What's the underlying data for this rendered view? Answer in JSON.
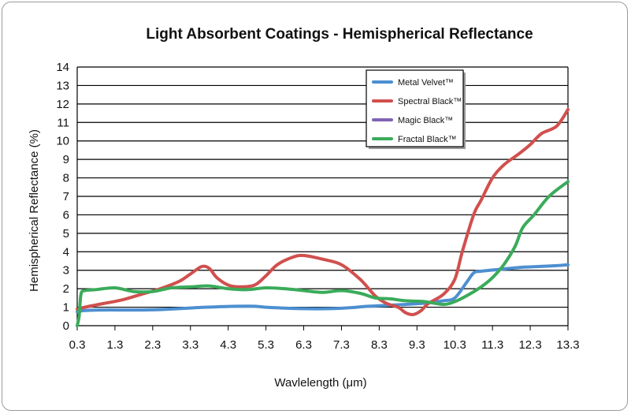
{
  "chart_data": {
    "type": "line",
    "title": "Light Absorbent Coatings - Hemispherical Reflectance",
    "xlabel": "Wavlelength (μm)",
    "ylabel": "Hemispherical Reflectance (%)",
    "xlim": [
      0.3,
      13.3
    ],
    "ylim": [
      0,
      14
    ],
    "xticks": [
      "0.3",
      "1.3",
      "2.3",
      "3.3",
      "4.3",
      "5.3",
      "6.3",
      "7.3",
      "8.3",
      "9.3",
      "10.3",
      "11.3",
      "12.3",
      "13.3"
    ],
    "yticks": [
      "0",
      "1",
      "2",
      "3",
      "4",
      "5",
      "6",
      "7",
      "8",
      "9",
      "10",
      "11",
      "12",
      "13",
      "14"
    ],
    "grid": "horizontal",
    "legend_position": "top-right",
    "series": [
      {
        "name": "Metal Velvet™",
        "color": "#4d8fd1",
        "x": [
          0.3,
          0.5,
          1.0,
          1.5,
          2.0,
          2.5,
          3.0,
          3.5,
          4.0,
          4.5,
          5.0,
          5.3,
          5.8,
          6.3,
          7.0,
          7.5,
          8.0,
          8.5,
          9.0,
          9.5,
          10.0,
          10.3,
          10.6,
          10.8,
          11.0,
          11.5,
          12.0,
          12.5,
          13.0,
          13.3
        ],
        "y": [
          0.75,
          0.82,
          0.85,
          0.85,
          0.85,
          0.87,
          0.92,
          0.98,
          1.02,
          1.05,
          1.05,
          1.0,
          0.95,
          0.92,
          0.92,
          0.97,
          1.05,
          1.1,
          1.15,
          1.22,
          1.35,
          1.5,
          2.3,
          2.85,
          2.95,
          3.05,
          3.15,
          3.2,
          3.25,
          3.3
        ]
      },
      {
        "name": "Spectral Black™",
        "color": "#d0504e",
        "x": [
          0.3,
          0.5,
          1.0,
          1.5,
          2.0,
          2.5,
          3.0,
          3.3,
          3.6,
          3.8,
          4.0,
          4.3,
          4.6,
          5.0,
          5.3,
          5.6,
          6.0,
          6.3,
          6.8,
          7.3,
          7.8,
          8.2,
          8.5,
          8.8,
          9.0,
          9.2,
          9.4,
          9.6,
          10.0,
          10.3,
          10.5,
          10.8,
          11.0,
          11.3,
          11.6,
          12.0,
          12.3,
          12.6,
          13.0,
          13.3
        ],
        "y": [
          0.9,
          1.0,
          1.2,
          1.4,
          1.7,
          2.0,
          2.4,
          2.8,
          3.2,
          3.1,
          2.6,
          2.2,
          2.1,
          2.2,
          2.7,
          3.3,
          3.7,
          3.8,
          3.6,
          3.3,
          2.5,
          1.6,
          1.2,
          1.0,
          0.7,
          0.6,
          0.8,
          1.2,
          1.7,
          2.5,
          4.0,
          6.0,
          6.8,
          8.0,
          8.7,
          9.3,
          9.8,
          10.4,
          10.8,
          11.7
        ]
      },
      {
        "name": "Magic Black™",
        "color": "#7f63b3",
        "x": [],
        "y": []
      },
      {
        "name": "Fractal Black™",
        "color": "#3aab5a",
        "x": [
          0.3,
          0.35,
          0.4,
          0.5,
          0.8,
          1.3,
          1.8,
          2.3,
          2.8,
          3.3,
          3.8,
          4.3,
          4.8,
          5.3,
          5.8,
          6.3,
          6.8,
          7.3,
          7.8,
          8.2,
          8.6,
          9.0,
          9.5,
          10.0,
          10.3,
          10.6,
          11.0,
          11.3,
          11.6,
          11.9,
          12.1,
          12.4,
          12.8,
          13.3
        ],
        "y": [
          0.0,
          0.5,
          1.7,
          1.9,
          1.95,
          2.05,
          1.85,
          1.85,
          2.05,
          2.1,
          2.15,
          2.0,
          1.95,
          2.05,
          2.0,
          1.9,
          1.8,
          1.9,
          1.75,
          1.5,
          1.45,
          1.35,
          1.3,
          1.15,
          1.3,
          1.6,
          2.1,
          2.6,
          3.3,
          4.3,
          5.3,
          6.0,
          7.0,
          7.8
        ]
      }
    ]
  }
}
